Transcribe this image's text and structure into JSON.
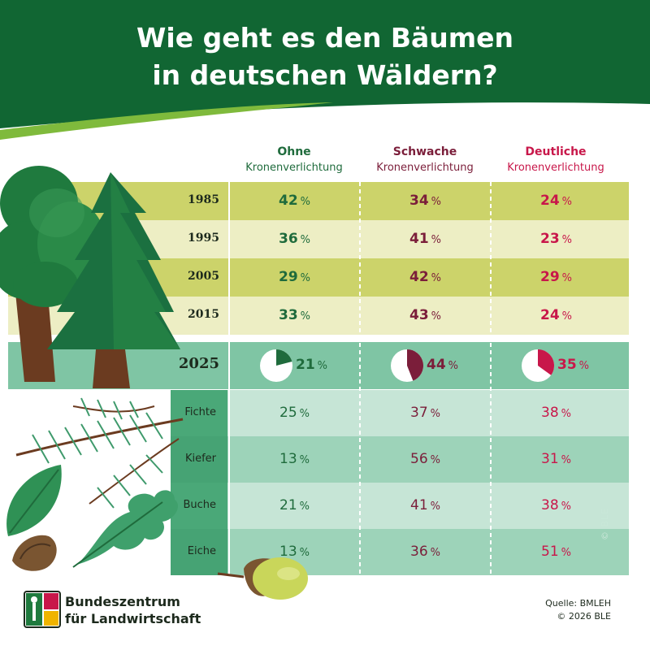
{
  "title_line1": "Wie geht es den Bäumen",
  "title_line2": "in deutschen Wäldern?",
  "columns": [
    {
      "line1": "Ohne",
      "line2": "Kronenverlichtung",
      "color": "#1f6b3c"
    },
    {
      "line1": "Schwache",
      "line2": "Kronenverlichtung",
      "color": "#7b1e3a"
    },
    {
      "line1": "Deutliche",
      "line2": "Kronenverlichtung",
      "color": "#c8174a"
    }
  ],
  "percent_sign": "%",
  "chart_data": {
    "type": "table",
    "columns": [
      "Ohne Kronenverlichtung",
      "Schwache Kronenverlichtung",
      "Deutliche Kronenverlichtung"
    ],
    "years": [
      {
        "year": "1985",
        "values": [
          42,
          34,
          24
        ]
      },
      {
        "year": "1995",
        "values": [
          36,
          41,
          23
        ]
      },
      {
        "year": "2005",
        "values": [
          29,
          42,
          29
        ]
      },
      {
        "year": "2015",
        "values": [
          33,
          43,
          24
        ]
      }
    ],
    "current": {
      "year": "2025",
      "values": [
        21,
        44,
        35
      ]
    },
    "species": [
      {
        "name": "Fichte",
        "values": [
          25,
          37,
          38
        ]
      },
      {
        "name": "Kiefer",
        "values": [
          13,
          56,
          31
        ]
      },
      {
        "name": "Buche",
        "values": [
          21,
          41,
          38
        ]
      },
      {
        "name": "Eiche",
        "values": [
          13,
          36,
          51
        ]
      }
    ]
  },
  "logo": {
    "line1": "Bundeszentrum",
    "line2": "für Landwirtschaft"
  },
  "source": "Quelle: BMLEH",
  "copyright": "© 2026 BLE",
  "watermark": "© BLE"
}
